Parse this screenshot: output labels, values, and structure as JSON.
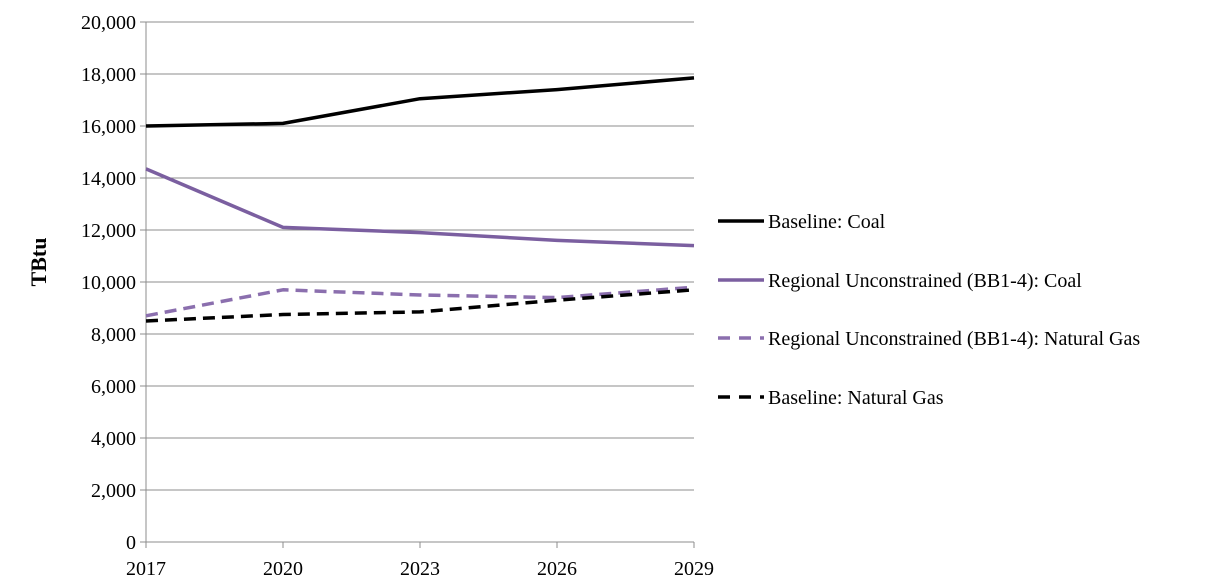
{
  "chart_data": {
    "type": "line",
    "title": "",
    "xlabel": "",
    "ylabel": "TBtu",
    "x": [
      "2017",
      "2020",
      "2023",
      "2026",
      "2029"
    ],
    "ylim": [
      0,
      20000
    ],
    "yticks": [
      0,
      2000,
      4000,
      6000,
      8000,
      10000,
      12000,
      14000,
      16000,
      18000,
      20000
    ],
    "ytick_labels": [
      "0",
      "2,000",
      "4,000",
      "6,000",
      "8,000",
      "10,000",
      "12,000",
      "14,000",
      "16,000",
      "18,000",
      "20,000"
    ],
    "grid": "horizontal",
    "legend_position": "right",
    "series": [
      {
        "name": "Baseline: Coal",
        "values": [
          16000,
          16100,
          17050,
          17400,
          17850
        ],
        "color": "#000000",
        "dashed": false
      },
      {
        "name": "Regional Unconstrained (BB1-4): Coal",
        "values": [
          14350,
          12100,
          11900,
          11600,
          11400
        ],
        "color": "#7b5fa0",
        "dashed": false
      },
      {
        "name": "Regional Unconstrained (BB1-4): Natural Gas",
        "values": [
          8700,
          9700,
          9500,
          9400,
          9800
        ],
        "color": "#8b6fae",
        "dashed": true
      },
      {
        "name": "Baseline: Natural Gas",
        "values": [
          8500,
          8750,
          8850,
          9300,
          9700
        ],
        "color": "#000000",
        "dashed": true
      }
    ]
  }
}
